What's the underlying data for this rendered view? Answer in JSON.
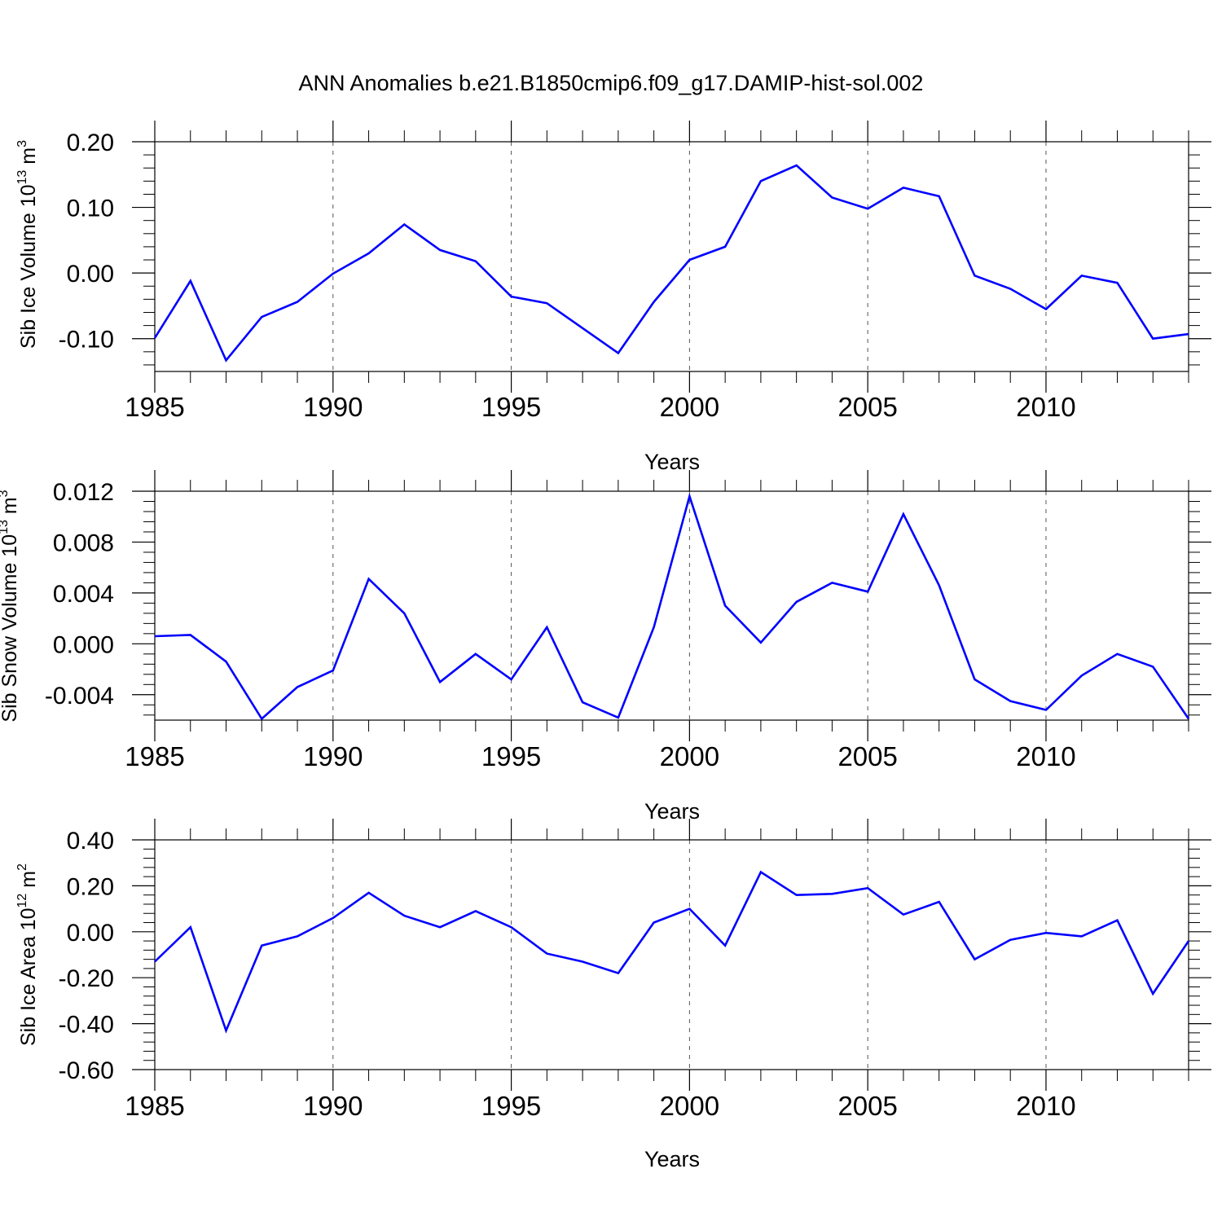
{
  "title": "ANN Anomalies b.e21.B1850cmip6.f09_g17.DAMIP-hist-sol.002",
  "colors": {
    "line": "#0000ff",
    "axis": "#000000",
    "grid": "#555555"
  },
  "chart_data": [
    {
      "type": "line",
      "ylabel_main": "Sib Ice Volume 10",
      "ylabel_sup1": "13",
      "ylabel_mid": " m",
      "ylabel_sup2": "3",
      "xlabel": "Years",
      "xlim": [
        1985,
        2014
      ],
      "ylim": [
        -0.15,
        0.2
      ],
      "yticks": [
        0.2,
        0.1,
        0.0,
        -0.1
      ],
      "ytick_labels": [
        "0.20",
        "0.10",
        "0.00",
        "-0.10"
      ],
      "xtick_labels": [
        "1985",
        "1990",
        "1995",
        "2000",
        "2005",
        "2010"
      ],
      "x": [
        1985,
        1986,
        1987,
        1988,
        1989,
        1990,
        1991,
        1992,
        1993,
        1994,
        1995,
        1996,
        1997,
        1998,
        1999,
        2000,
        2001,
        2002,
        2003,
        2004,
        2005,
        2006,
        2007,
        2008,
        2009,
        2010,
        2011,
        2012,
        2013,
        2014
      ],
      "values": [
        -0.099,
        -0.012,
        -0.133,
        -0.067,
        -0.044,
        -0.001,
        0.03,
        0.074,
        0.035,
        0.018,
        -0.036,
        -0.046,
        -0.084,
        -0.122,
        -0.044,
        0.02,
        0.04,
        0.14,
        0.164,
        0.115,
        0.098,
        0.13,
        0.117,
        -0.004,
        -0.024,
        -0.055,
        -0.004,
        -0.015,
        -0.1,
        -0.093
      ]
    },
    {
      "type": "line",
      "ylabel_main": "Sib Snow Volume 10",
      "ylabel_sup1": "13",
      "ylabel_mid": " m",
      "ylabel_sup2": "3",
      "xlabel": "Years",
      "xlim": [
        1985,
        2014
      ],
      "ylim": [
        -0.006,
        0.012
      ],
      "yticks": [
        0.012,
        0.008,
        0.004,
        0.0,
        -0.004
      ],
      "ytick_labels": [
        "0.012",
        "0.008",
        "0.004",
        "0.000",
        "-0.004"
      ],
      "xtick_labels": [
        "1985",
        "1990",
        "1995",
        "2000",
        "2005",
        "2010"
      ],
      "x": [
        1985,
        1986,
        1987,
        1988,
        1989,
        1990,
        1991,
        1992,
        1993,
        1994,
        1995,
        1996,
        1997,
        1998,
        1999,
        2000,
        2001,
        2002,
        2003,
        2004,
        2005,
        2006,
        2007,
        2008,
        2009,
        2010,
        2011,
        2012,
        2013,
        2014
      ],
      "values": [
        0.0006,
        0.0007,
        -0.0014,
        -0.0059,
        -0.0034,
        -0.0021,
        0.0051,
        0.0024,
        -0.003,
        -0.0008,
        -0.0028,
        0.0013,
        -0.0046,
        -0.0058,
        0.0013,
        0.0116,
        0.003,
        0.0001,
        0.0033,
        0.0048,
        0.0041,
        0.0102,
        0.0046,
        -0.0028,
        -0.0045,
        -0.0052,
        -0.0025,
        -0.0008,
        -0.0018,
        -0.0059
      ]
    },
    {
      "type": "line",
      "ylabel_main": "Sib Ice Area 10",
      "ylabel_sup1": "12",
      "ylabel_mid": " m",
      "ylabel_sup2": "2",
      "xlabel": "Years",
      "xlim": [
        1985,
        2014
      ],
      "ylim": [
        -0.6,
        0.4
      ],
      "yticks": [
        0.4,
        0.2,
        0.0,
        -0.2,
        -0.4,
        -0.6
      ],
      "ytick_labels": [
        "0.40",
        "0.20",
        "0.00",
        "-0.20",
        "-0.40",
        "-0.60"
      ],
      "xtick_labels": [
        "1985",
        "1990",
        "1995",
        "2000",
        "2005",
        "2010"
      ],
      "x": [
        1985,
        1986,
        1987,
        1988,
        1989,
        1990,
        1991,
        1992,
        1993,
        1994,
        1995,
        1996,
        1997,
        1998,
        1999,
        2000,
        2001,
        2002,
        2003,
        2004,
        2005,
        2006,
        2007,
        2008,
        2009,
        2010,
        2011,
        2012,
        2013,
        2014
      ],
      "values": [
        -0.13,
        0.02,
        -0.43,
        -0.06,
        -0.02,
        0.06,
        0.17,
        0.07,
        0.02,
        0.09,
        0.02,
        -0.095,
        -0.13,
        -0.18,
        0.04,
        0.1,
        -0.06,
        0.26,
        0.16,
        0.165,
        0.19,
        0.075,
        0.13,
        -0.12,
        -0.035,
        -0.005,
        -0.02,
        0.05,
        -0.27,
        -0.04
      ]
    }
  ]
}
